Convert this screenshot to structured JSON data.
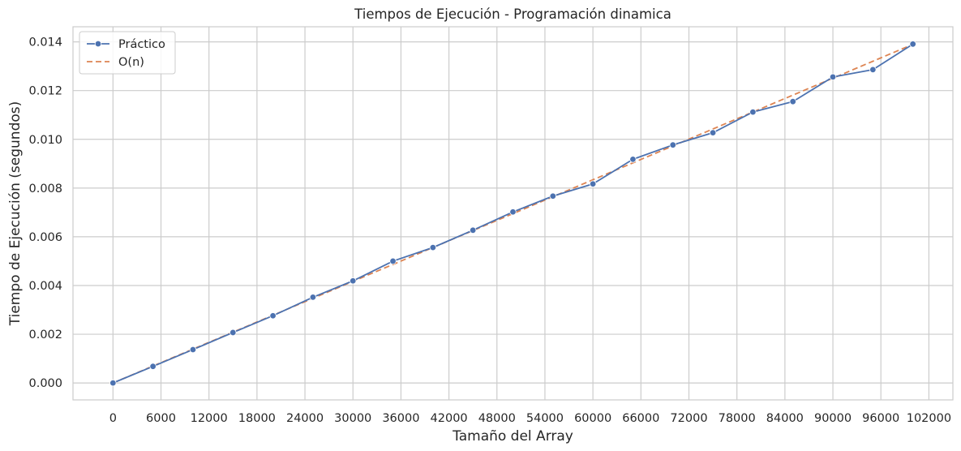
{
  "chart_data": {
    "type": "line",
    "title": "Tiempos de Ejecución - Programación dinamica",
    "xlabel": "Tamaño del Array",
    "ylabel": "Tiempo de Ejecución (segundos)",
    "xlim": [
      -5000,
      105000
    ],
    "ylim": [
      -0.000695,
      0.01462
    ],
    "x_ticks": [
      0,
      6000,
      12000,
      18000,
      24000,
      30000,
      36000,
      42000,
      48000,
      54000,
      60000,
      66000,
      72000,
      78000,
      84000,
      90000,
      96000,
      102000
    ],
    "x_tick_labels": [
      "0",
      "6000",
      "12000",
      "18000",
      "24000",
      "30000",
      "36000",
      "42000",
      "48000",
      "54000",
      "60000",
      "66000",
      "72000",
      "78000",
      "84000",
      "90000",
      "96000",
      "102000"
    ],
    "y_ticks": [
      0,
      0.002,
      0.004,
      0.006,
      0.008,
      0.01,
      0.012,
      0.014
    ],
    "y_tick_labels": [
      "0.000",
      "0.002",
      "0.004",
      "0.006",
      "0.008",
      "0.010",
      "0.012",
      "0.014"
    ],
    "grid": true,
    "legend_position": "top-left",
    "x": [
      0,
      5000,
      10000,
      15000,
      20000,
      25000,
      30000,
      35000,
      40000,
      45000,
      50000,
      55000,
      60000,
      65000,
      70000,
      75000,
      80000,
      85000,
      90000,
      95000,
      100000
    ],
    "series": [
      {
        "name": "Práctico",
        "color": "#4c72b0",
        "style": "solid",
        "marker": "circle",
        "values": [
          0.0,
          0.00068,
          0.00137,
          0.00207,
          0.00276,
          0.00352,
          0.00419,
          0.005,
          0.00556,
          0.00627,
          0.00702,
          0.00767,
          0.00817,
          0.00918,
          0.00977,
          0.01027,
          0.01112,
          0.01155,
          0.01256,
          0.01286,
          0.01391
        ]
      },
      {
        "name": "O(n)",
        "color": "#dd8452",
        "style": "dashed",
        "marker": "none",
        "values": [
          0.0,
          0.000695,
          0.00139,
          0.002085,
          0.00278,
          0.003475,
          0.00417,
          0.004865,
          0.00556,
          0.006255,
          0.00695,
          0.007645,
          0.00834,
          0.009035,
          0.00973,
          0.010425,
          0.01112,
          0.011815,
          0.01251,
          0.013205,
          0.0139
        ]
      }
    ]
  }
}
